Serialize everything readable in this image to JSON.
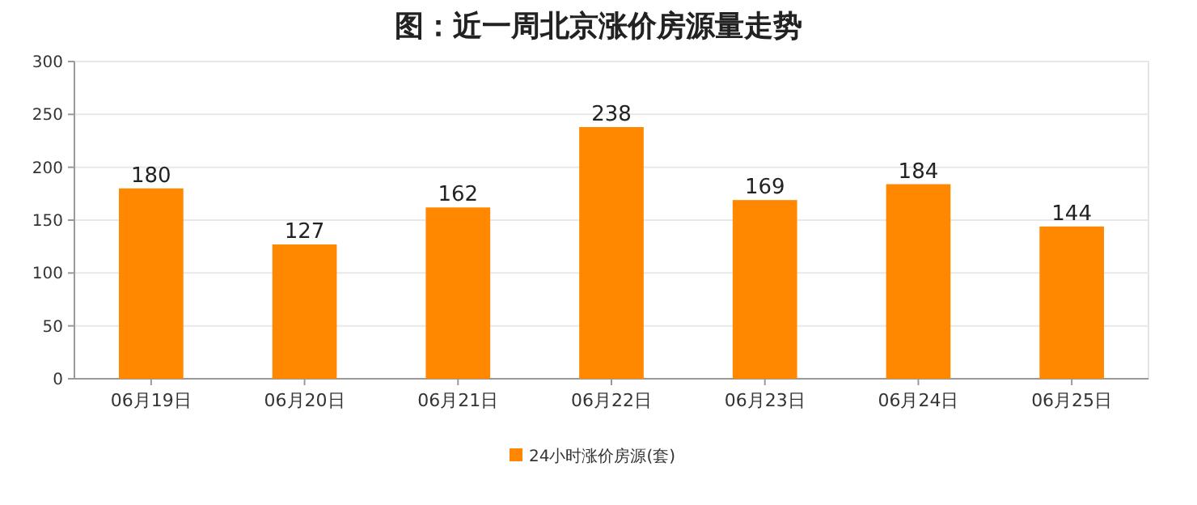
{
  "chart_data": {
    "type": "bar",
    "title": "图：近一周北京涨价房源量走势",
    "categories": [
      "06月19日",
      "06月20日",
      "06月21日",
      "06月22日",
      "06月23日",
      "06月24日",
      "06月25日"
    ],
    "series": [
      {
        "name": "24小时涨价房源(套)",
        "color": "#ff8800",
        "values": [
          180,
          127,
          162,
          238,
          169,
          184,
          144
        ]
      }
    ],
    "ylim": [
      0,
      300
    ],
    "yticks": [
      0,
      50,
      100,
      150,
      200,
      250,
      300
    ],
    "grid": "y",
    "legend": "bottom",
    "data_labels": true
  }
}
